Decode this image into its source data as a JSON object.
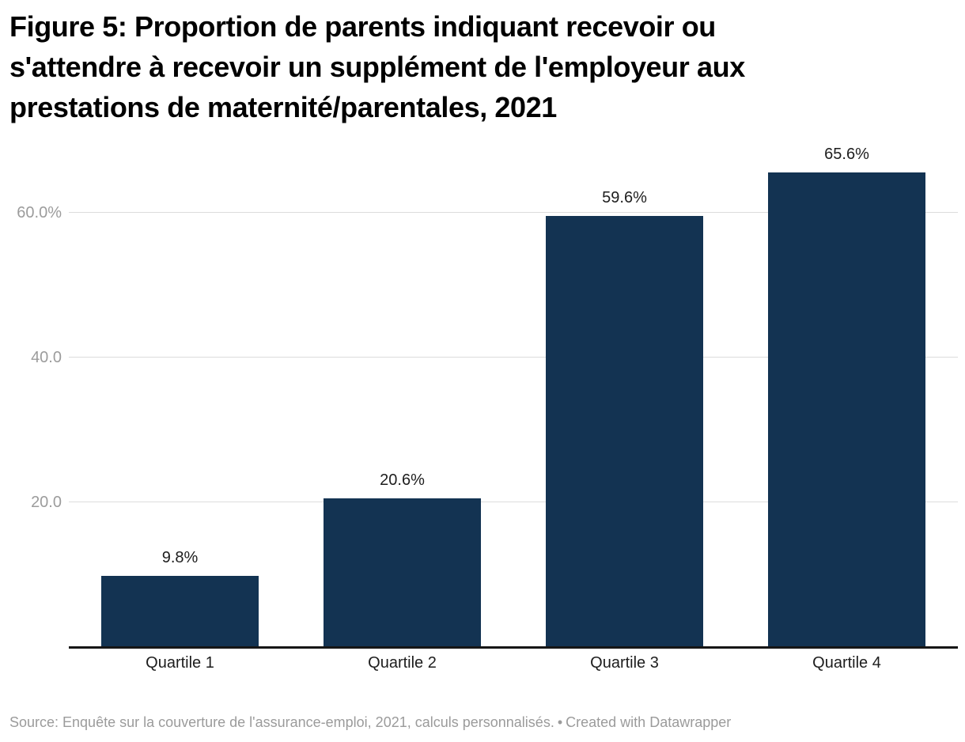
{
  "chart": {
    "title_lines": [
      "Figure 5: Proportion de parents indiquant recevoir ou",
      "s'attendre à recevoir un supplément de l'employeur aux",
      "prestations de maternité/parentales, 2021"
    ]
  },
  "chart_data": {
    "type": "bar",
    "title": "Figure 5: Proportion de parents indiquant recevoir ou s'attendre à recevoir un supplément de l'employeur aux prestations de maternité/parentales, 2021",
    "categories": [
      "Quartile 1",
      "Quartile 2",
      "Quartile 3",
      "Quartile 4"
    ],
    "values": [
      9.8,
      20.6,
      59.6,
      65.6
    ],
    "value_labels": [
      "9.8%",
      "20.6%",
      "59.6%",
      "65.6%"
    ],
    "xlabel": "",
    "ylabel": "",
    "ylim": [
      0,
      70
    ],
    "y_ticks": [
      {
        "value": 20,
        "label": "20.0"
      },
      {
        "value": 40,
        "label": "40.0"
      },
      {
        "value": 60,
        "label": "60.0%"
      }
    ],
    "grid": "horizontal",
    "legend": "none",
    "bar_color": "#133352"
  },
  "footer": {
    "source_text": "Source: Enquête sur la couverture de l'assurance-emploi, 2021, calculs personnalisés.",
    "separator": "•",
    "credit_text": "Created with Datawrapper"
  },
  "colors": {
    "bar": "#133352",
    "gridline": "#dcdcdc",
    "axis_line": "#161616",
    "tick_text": "#9c9c9c",
    "label_text": "#1d1d1d",
    "footer_text": "#9b9b9b"
  }
}
